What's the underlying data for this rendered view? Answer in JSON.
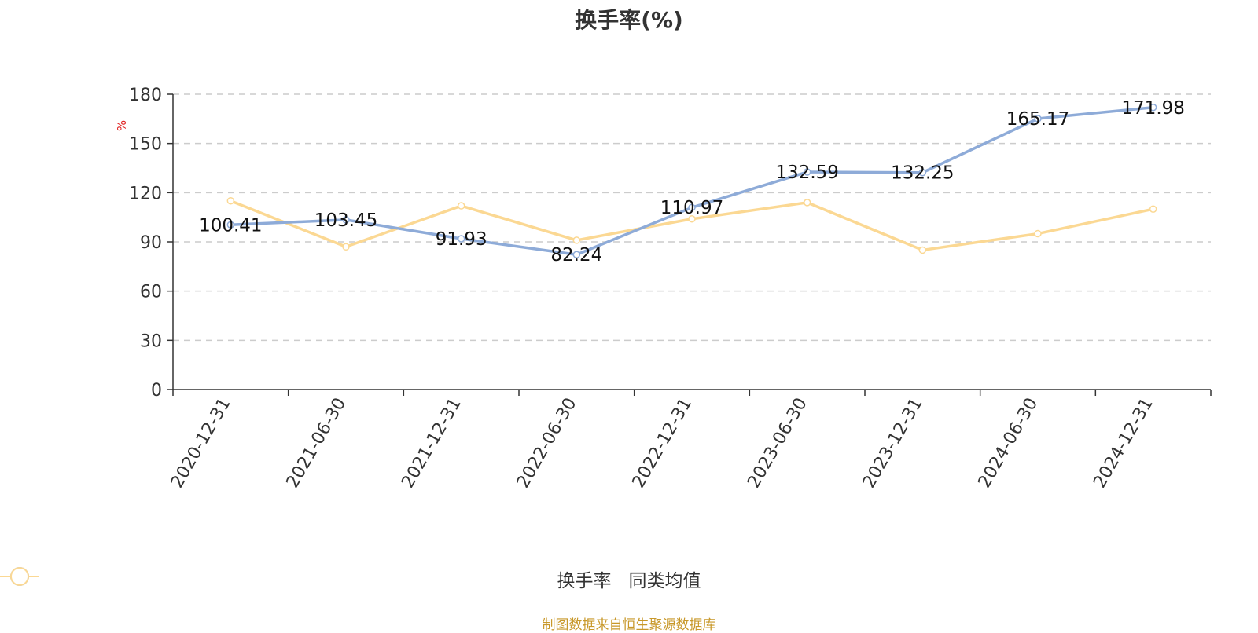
{
  "chart_data": {
    "type": "line",
    "title": "换手率(%)",
    "ylabel": "%",
    "ylim": [
      0,
      180
    ],
    "yticks": [
      0,
      30,
      60,
      90,
      120,
      150,
      180
    ],
    "grid": true,
    "legend_position": "bottom-center",
    "categories": [
      "2020-12-31",
      "2021-06-30",
      "2021-12-31",
      "2022-06-30",
      "2022-12-31",
      "2023-06-30",
      "2023-12-31",
      "2024-06-30",
      "2024-12-31"
    ],
    "series": [
      {
        "name": "换手率",
        "color": "#8eabd8",
        "show_labels": true,
        "values": [
          100.41,
          103.45,
          91.93,
          82.24,
          110.97,
          132.59,
          132.25,
          165.17,
          171.98
        ]
      },
      {
        "name": "同类均值",
        "color": "#fbd893",
        "show_labels": false,
        "values": [
          115,
          87,
          112,
          91,
          104,
          114,
          85,
          95,
          110
        ]
      }
    ]
  },
  "footer": {
    "source": "制图数据来自恒生聚源数据库"
  },
  "colors": {
    "ylabel": "#e02020",
    "axis": "#333333",
    "grid": "#cccccc",
    "footer": "#c8982a"
  }
}
